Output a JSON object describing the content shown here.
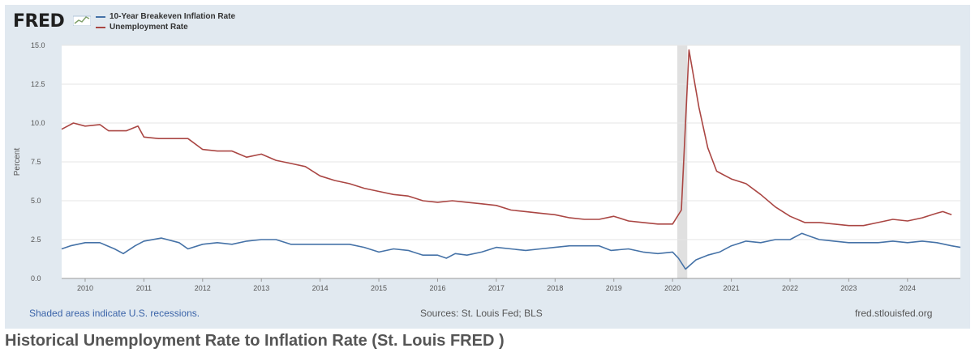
{
  "header": {
    "logo_text": "FRED",
    "logo_icon": "fred-graph-icon"
  },
  "legend": [
    {
      "label": "10-Year Breakeven Inflation Rate",
      "color": "#4572a7"
    },
    {
      "label": "Unemployment Rate",
      "color": "#aa4643"
    }
  ],
  "footer": {
    "recession_note": "Shaded areas indicate U.S. recessions.",
    "sources": "Sources: St. Louis Fed; BLS",
    "site": "fred.stlouisfed.org"
  },
  "caption": "Historical Unemployment Rate to Inflation Rate (St. Louis FRED )",
  "colors": {
    "panel_bg": "#e1e9f0",
    "plot_bg": "#ffffff",
    "recession_shade": "#e0e0e0",
    "inflation": "#4572a7",
    "unemployment": "#aa4643"
  },
  "chart_data": {
    "type": "line",
    "title": "",
    "xlabel": "",
    "ylabel": "Percent",
    "xlim": [
      2009.6,
      2024.9
    ],
    "ylim": [
      0,
      15
    ],
    "y_ticks": [
      "0.0",
      "2.5",
      "5.0",
      "7.5",
      "10.0",
      "12.5",
      "15.0"
    ],
    "x_ticks": [
      "2010",
      "2011",
      "2012",
      "2013",
      "2014",
      "2015",
      "2016",
      "2017",
      "2018",
      "2019",
      "2020",
      "2021",
      "2022",
      "2023",
      "2024"
    ],
    "grid": true,
    "legend_position": "top-left",
    "recessions": [
      {
        "start": 2020.08,
        "end": 2020.25
      }
    ],
    "series": [
      {
        "name": "10-Year Breakeven Inflation Rate",
        "color": "#4572a7",
        "points": [
          [
            2009.6,
            1.9
          ],
          [
            2009.75,
            2.1
          ],
          [
            2010.0,
            2.3
          ],
          [
            2010.25,
            2.3
          ],
          [
            2010.5,
            1.9
          ],
          [
            2010.65,
            1.6
          ],
          [
            2010.85,
            2.1
          ],
          [
            2011.0,
            2.4
          ],
          [
            2011.3,
            2.6
          ],
          [
            2011.6,
            2.3
          ],
          [
            2011.75,
            1.9
          ],
          [
            2012.0,
            2.2
          ],
          [
            2012.25,
            2.3
          ],
          [
            2012.5,
            2.2
          ],
          [
            2012.75,
            2.4
          ],
          [
            2013.0,
            2.5
          ],
          [
            2013.25,
            2.5
          ],
          [
            2013.5,
            2.2
          ],
          [
            2013.75,
            2.2
          ],
          [
            2014.0,
            2.2
          ],
          [
            2014.25,
            2.2
          ],
          [
            2014.5,
            2.2
          ],
          [
            2014.75,
            2.0
          ],
          [
            2015.0,
            1.7
          ],
          [
            2015.25,
            1.9
          ],
          [
            2015.5,
            1.8
          ],
          [
            2015.75,
            1.5
          ],
          [
            2016.0,
            1.5
          ],
          [
            2016.15,
            1.3
          ],
          [
            2016.3,
            1.6
          ],
          [
            2016.5,
            1.5
          ],
          [
            2016.75,
            1.7
          ],
          [
            2017.0,
            2.0
          ],
          [
            2017.25,
            1.9
          ],
          [
            2017.5,
            1.8
          ],
          [
            2017.75,
            1.9
          ],
          [
            2018.0,
            2.0
          ],
          [
            2018.25,
            2.1
          ],
          [
            2018.5,
            2.1
          ],
          [
            2018.75,
            2.1
          ],
          [
            2018.95,
            1.8
          ],
          [
            2019.25,
            1.9
          ],
          [
            2019.5,
            1.7
          ],
          [
            2019.75,
            1.6
          ],
          [
            2020.0,
            1.7
          ],
          [
            2020.1,
            1.3
          ],
          [
            2020.22,
            0.6
          ],
          [
            2020.4,
            1.2
          ],
          [
            2020.6,
            1.5
          ],
          [
            2020.8,
            1.7
          ],
          [
            2021.0,
            2.1
          ],
          [
            2021.25,
            2.4
          ],
          [
            2021.5,
            2.3
          ],
          [
            2021.75,
            2.5
          ],
          [
            2022.0,
            2.5
          ],
          [
            2022.2,
            2.9
          ],
          [
            2022.35,
            2.7
          ],
          [
            2022.5,
            2.5
          ],
          [
            2022.75,
            2.4
          ],
          [
            2023.0,
            2.3
          ],
          [
            2023.25,
            2.3
          ],
          [
            2023.5,
            2.3
          ],
          [
            2023.75,
            2.4
          ],
          [
            2024.0,
            2.3
          ],
          [
            2024.25,
            2.4
          ],
          [
            2024.5,
            2.3
          ],
          [
            2024.75,
            2.1
          ],
          [
            2024.9,
            2.0
          ]
        ]
      },
      {
        "name": "Unemployment Rate",
        "color": "#aa4643",
        "points": [
          [
            2009.6,
            9.6
          ],
          [
            2009.8,
            10.0
          ],
          [
            2010.0,
            9.8
          ],
          [
            2010.25,
            9.9
          ],
          [
            2010.4,
            9.5
          ],
          [
            2010.7,
            9.5
          ],
          [
            2010.9,
            9.8
          ],
          [
            2011.0,
            9.1
          ],
          [
            2011.25,
            9.0
          ],
          [
            2011.5,
            9.0
          ],
          [
            2011.75,
            9.0
          ],
          [
            2012.0,
            8.3
          ],
          [
            2012.25,
            8.2
          ],
          [
            2012.5,
            8.2
          ],
          [
            2012.75,
            7.8
          ],
          [
            2013.0,
            8.0
          ],
          [
            2013.25,
            7.6
          ],
          [
            2013.5,
            7.4
          ],
          [
            2013.75,
            7.2
          ],
          [
            2014.0,
            6.6
          ],
          [
            2014.25,
            6.3
          ],
          [
            2014.5,
            6.1
          ],
          [
            2014.75,
            5.8
          ],
          [
            2015.0,
            5.6
          ],
          [
            2015.25,
            5.4
          ],
          [
            2015.5,
            5.3
          ],
          [
            2015.75,
            5.0
          ],
          [
            2016.0,
            4.9
          ],
          [
            2016.25,
            5.0
          ],
          [
            2016.5,
            4.9
          ],
          [
            2016.75,
            4.8
          ],
          [
            2017.0,
            4.7
          ],
          [
            2017.25,
            4.4
          ],
          [
            2017.5,
            4.3
          ],
          [
            2017.75,
            4.2
          ],
          [
            2018.0,
            4.1
          ],
          [
            2018.25,
            3.9
          ],
          [
            2018.5,
            3.8
          ],
          [
            2018.75,
            3.8
          ],
          [
            2019.0,
            4.0
          ],
          [
            2019.25,
            3.7
          ],
          [
            2019.5,
            3.6
          ],
          [
            2019.75,
            3.5
          ],
          [
            2020.0,
            3.5
          ],
          [
            2020.15,
            4.4
          ],
          [
            2020.28,
            14.7
          ],
          [
            2020.45,
            11.0
          ],
          [
            2020.6,
            8.4
          ],
          [
            2020.75,
            6.9
          ],
          [
            2021.0,
            6.4
          ],
          [
            2021.25,
            6.1
          ],
          [
            2021.5,
            5.4
          ],
          [
            2021.75,
            4.6
          ],
          [
            2022.0,
            4.0
          ],
          [
            2022.25,
            3.6
          ],
          [
            2022.5,
            3.6
          ],
          [
            2022.75,
            3.5
          ],
          [
            2023.0,
            3.4
          ],
          [
            2023.25,
            3.4
          ],
          [
            2023.5,
            3.6
          ],
          [
            2023.75,
            3.8
          ],
          [
            2024.0,
            3.7
          ],
          [
            2024.25,
            3.9
          ],
          [
            2024.5,
            4.2
          ],
          [
            2024.6,
            4.3
          ],
          [
            2024.75,
            4.1
          ]
        ]
      }
    ]
  }
}
